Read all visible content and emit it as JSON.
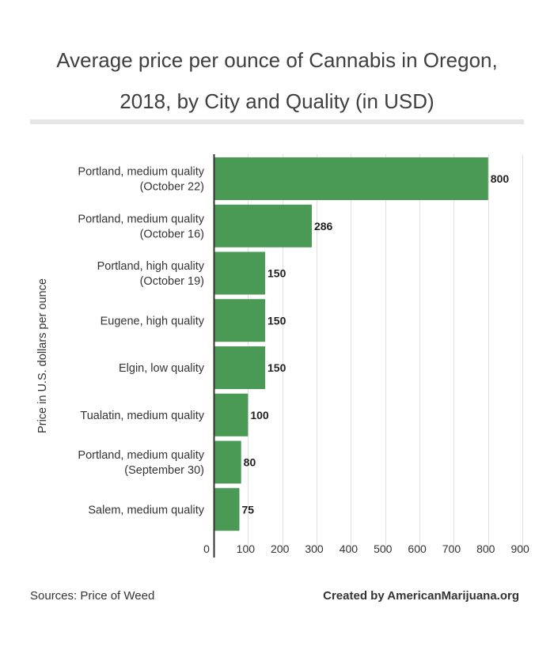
{
  "title_lines": [
    "Average price per ounce of Cannabis in Oregon,",
    "2018, by City and Quality (in USD)"
  ],
  "footer": {
    "source": "Sources: Price of Weed",
    "credit": "Created by AmericanMarijuana.org"
  },
  "chart_data": {
    "type": "bar",
    "orientation": "horizontal",
    "title": "Average price per ounce of Cannabis in Oregon, 2018, by City and Quality (in USD)",
    "ylabel": "Price in U.S. dollars per ounce",
    "xlabel": "",
    "categories": [
      [
        "Portland, medium quality",
        "(October 22)"
      ],
      [
        "Portland, medium quality",
        "(October 16)"
      ],
      [
        "Portland, high quality",
        "(October 19)"
      ],
      [
        "Eugene, high quality"
      ],
      [
        "Elgin, low quality"
      ],
      [
        "Tualatin, medium quality"
      ],
      [
        "Portland, medium quality",
        "(September 30)"
      ],
      [
        "Salem, medium quality"
      ]
    ],
    "values": [
      800,
      286,
      150,
      150,
      150,
      100,
      80,
      75
    ],
    "data_labels": [
      "800",
      "286",
      "150",
      "150",
      "150",
      "100",
      "80",
      "75"
    ],
    "xlim": [
      0,
      900
    ],
    "x_ticks": [
      0,
      100,
      200,
      300,
      400,
      500,
      600,
      700,
      800,
      900
    ],
    "grid": true,
    "bar_color": "#4a9a55",
    "grid_color": "#e0e0e0",
    "axis_color": "#333333"
  }
}
